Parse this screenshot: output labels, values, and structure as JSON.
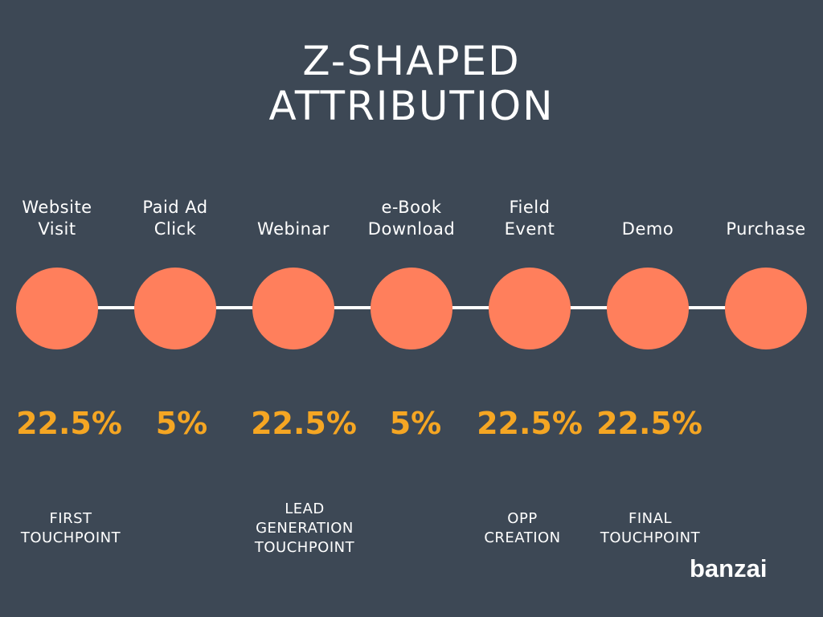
{
  "title": {
    "line1": "Z-SHAPED",
    "line2": "ATTRIBUTION"
  },
  "stages": [
    {
      "label": "Website\nVisit",
      "percent": "22.5%",
      "role": "FIRST\nTOUCHPOINT"
    },
    {
      "label": "Paid Ad\nClick",
      "percent": "5%",
      "role": ""
    },
    {
      "label": "Webinar",
      "percent": "22.5%",
      "role": "LEAD\nGENERATION\nTOUCHPOINT"
    },
    {
      "label": "e-Book\nDownload",
      "percent": "5%",
      "role": ""
    },
    {
      "label": "Field\nEvent",
      "percent": "22.5%",
      "role": "OPP\nCREATION"
    },
    {
      "label": "Demo",
      "percent": "22.5%",
      "role": "FINAL\nTOUCHPOINT"
    },
    {
      "label": "Purchase",
      "percent": "",
      "role": ""
    }
  ],
  "colors": {
    "background": "#3d4855",
    "circle": "#ff7f5c",
    "percent": "#f5a623",
    "text": "#ffffff"
  },
  "logo": "banzai"
}
